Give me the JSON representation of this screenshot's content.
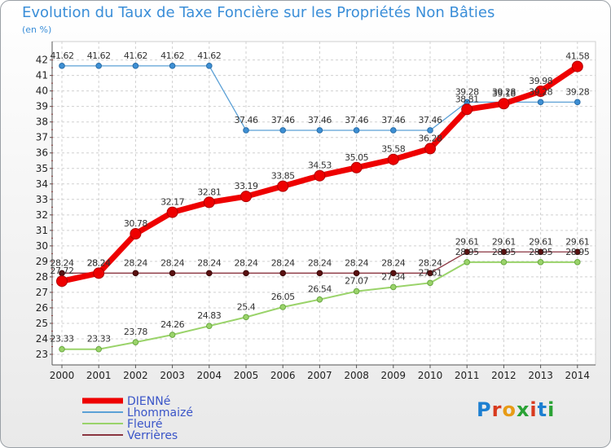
{
  "title": "Evolution du Taux de Taxe Foncière sur les Propriétés Non Bâties",
  "subtitle": "(en %)",
  "logo_text": "Proxiti",
  "chart_data": {
    "type": "line",
    "title": "Evolution du Taux de Taxe Foncière sur les Propriétés Non Bâties",
    "ylabel": "(en %)",
    "xlabel": "",
    "ylim": [
      23,
      42
    ],
    "yticks": [
      23,
      24,
      25,
      26,
      27,
      28,
      29,
      30,
      31,
      32,
      33,
      34,
      35,
      36,
      37,
      38,
      39,
      40,
      41,
      42
    ],
    "x": [
      "2000",
      "2001",
      "2002",
      "2003",
      "2004",
      "2005",
      "2006",
      "2007",
      "2008",
      "2009",
      "2010",
      "2011",
      "2012",
      "2013",
      "2014"
    ],
    "legend_position": "bottom-left",
    "grid": true,
    "series": [
      {
        "name": "DIENNé",
        "color": "#ee0000",
        "width": 7,
        "values": [
          27.72,
          28.24,
          30.78,
          32.17,
          32.81,
          33.19,
          33.85,
          34.53,
          35.05,
          35.58,
          36.28,
          38.81,
          39.18,
          39.98,
          41.58
        ],
        "labels": [
          "27.72",
          "28.24",
          "30.78",
          "32.17",
          "32.81",
          "33.19",
          "33.85",
          "34.53",
          "35.05",
          "35.58",
          "36.28",
          "38.81",
          "39.18",
          "39.98",
          "41.58"
        ]
      },
      {
        "name": "Lhommaizé",
        "color": "#5ba0d6",
        "width": 1.3,
        "values": [
          41.62,
          41.62,
          41.62,
          41.62,
          41.62,
          37.46,
          37.46,
          37.46,
          37.46,
          37.46,
          37.46,
          39.28,
          39.28,
          39.28,
          39.28
        ],
        "labels": [
          "41.62",
          "41.62",
          "41.62",
          "41.62",
          "41.62",
          "37.46",
          "37.46",
          "37.46",
          "37.46",
          "37.46",
          "37.46",
          "39.28",
          "39.28",
          "39.28",
          "39.28"
        ]
      },
      {
        "name": "Fleuré",
        "color": "#9ad36a",
        "width": 2,
        "values": [
          23.33,
          23.33,
          23.78,
          24.26,
          24.83,
          25.4,
          26.05,
          26.54,
          27.07,
          27.34,
          27.61,
          28.95,
          28.95,
          28.95,
          28.95
        ],
        "labels": [
          "23.33",
          "23.33",
          "23.78",
          "24.26",
          "24.83",
          "25.4",
          "26.05",
          "26.54",
          "27.07",
          "27.34",
          "27.61",
          "28.95",
          "28.95",
          "28.95",
          "28.95"
        ]
      },
      {
        "name": "Verrières",
        "color": "#8a3540",
        "width": 1.3,
        "values": [
          28.24,
          28.24,
          28.24,
          28.24,
          28.24,
          28.24,
          28.24,
          28.24,
          28.24,
          28.24,
          28.24,
          29.61,
          29.61,
          29.61,
          29.61
        ],
        "labels": [
          "28.24",
          "28.24",
          "28.24",
          "28.24",
          "28.24",
          "28.24",
          "28.24",
          "28.24",
          "28.24",
          "28.24",
          "28.24",
          "29.61",
          "29.61",
          "29.61",
          "29.61"
        ]
      }
    ]
  }
}
